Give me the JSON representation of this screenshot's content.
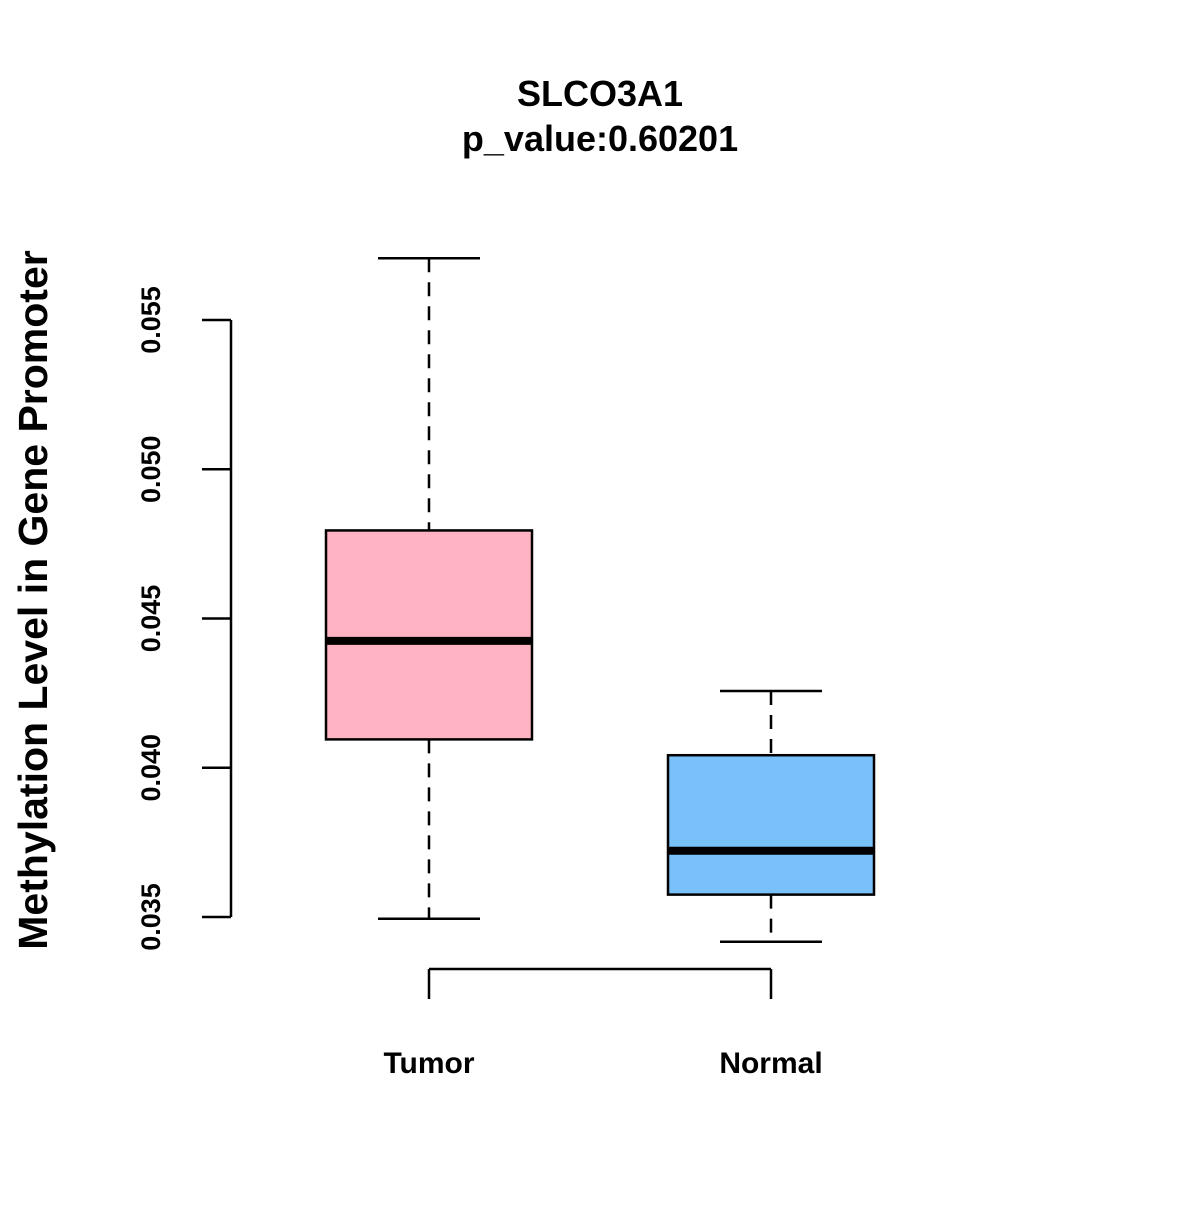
{
  "chart_data": {
    "type": "boxplot",
    "title": "SLCO3A1",
    "subtitle": "p_value:0.60201",
    "xlabel": "",
    "ylabel": "Methylation Level in Gene Promoter",
    "ylim": [
      0.035,
      0.055
    ],
    "yticks": [
      0.035,
      0.04,
      0.045,
      0.05,
      0.055
    ],
    "ytick_labels": [
      "0.035",
      "0.040",
      "0.045",
      "0.050",
      "0.055"
    ],
    "categories": [
      "Tumor",
      "Normal"
    ],
    "boxes": [
      {
        "name": "Tumor",
        "whisker_low": 0.03494,
        "q1": 0.04095,
        "median": 0.04425,
        "q3": 0.04795,
        "whisker_high": 0.05707,
        "color": "#FFB3C3"
      },
      {
        "name": "Normal",
        "whisker_low": 0.03417,
        "q1": 0.03575,
        "median": 0.03722,
        "q3": 0.04042,
        "whisker_high": 0.04257,
        "color": "#78C1F9"
      }
    ],
    "comparison_bracket": [
      "Tumor",
      "Normal"
    ],
    "grid": false,
    "legend": "none"
  }
}
